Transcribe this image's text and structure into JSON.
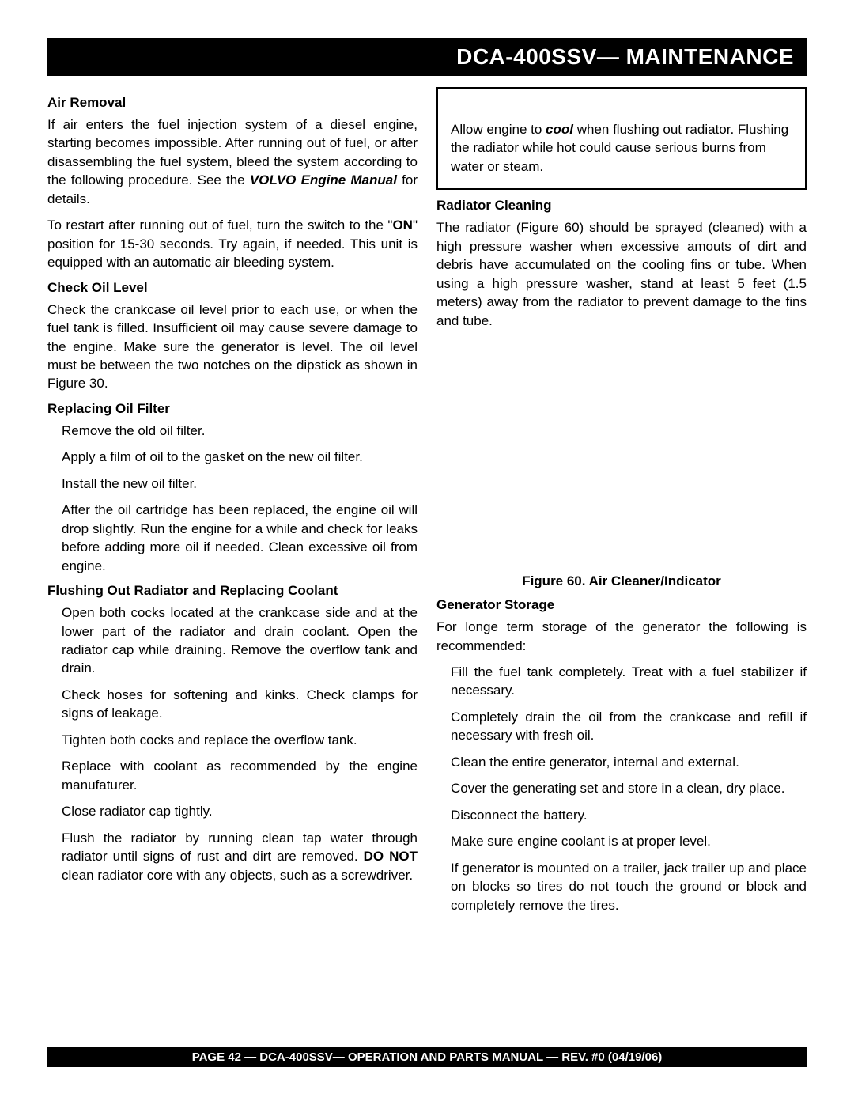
{
  "title_bar": "DCA-400SSV— MAINTENANCE",
  "footer": "PAGE 42 — DCA-400SSV—  OPERATION AND PARTS  MANUAL — REV. #0  (04/19/06)",
  "colors": {
    "bar_bg": "#000000",
    "bar_text": "#ffffff",
    "body_text": "#000000",
    "page_bg": "#ffffff",
    "border": "#000000"
  },
  "typography": {
    "heading_fontsize": 17,
    "body_fontsize": 17,
    "title_fontsize": 28,
    "footer_fontsize": 15
  },
  "left": {
    "air_removal": {
      "heading": "Air Removal",
      "p1_a": "If air enters the fuel injection system of a diesel engine, starting becomes impossible.  After running out of fuel, or after disassembling the fuel system, bleed the system according to the following procedure. See the ",
      "p1_b": "VOLVO Engine Manual",
      "p1_c": " for details.",
      "p2_a": "To restart after running out of fuel, turn the switch to the \"",
      "p2_b": "ON",
      "p2_c": "\" position for 15-30 seconds.  Try again, if needed. This unit is equipped with an automatic air bleeding system."
    },
    "check_oil": {
      "heading": "Check Oil Level",
      "p1": "Check the crankcase oil level prior to each use, or when the fuel tank is filled. Insufficient oil may cause severe damage to the engine. Make sure the generator is level. The oil level must be between the two notches on the dipstick as shown in Figure 30."
    },
    "oil_filter": {
      "heading": "Replacing Oil Filter",
      "items": [
        "Remove the old oil filter.",
        "Apply a film of oil to the gasket on the new oil filter.",
        "Install the new oil filter.",
        "After the oil cartridge has been replaced, the engine oil will drop slightly.  Run the engine for a while and check for leaks before adding more oil if needed. Clean excessive oil from engine."
      ]
    },
    "flushing": {
      "heading": "Flushing Out Radiator and Replacing Coolant",
      "items_plain": [
        "Open both cocks located at the crankcase side and at the lower part of the radiator and drain coolant. Open the radiator cap while draining. Remove the overflow tank and drain.",
        "Check hoses for softening and kinks.  Check clamps for signs of leakage.",
        "Tighten both cocks and replace the overflow tank.",
        "Replace with coolant as recommended by the engine manufaturer.",
        "Close radiator cap tightly."
      ],
      "last_a": "Flush the radiator by running clean tap water through radiator until signs of rust and dirt are removed. ",
      "last_b": "DO NOT",
      "last_c": " clean radiator core with any objects, such as a screwdriver."
    }
  },
  "right": {
    "warning": {
      "a": "Allow engine to ",
      "b": "cool",
      "c": " when flushing out radiator. Flushing the radiator while hot could cause serious burns from water or steam."
    },
    "radiator_cleaning": {
      "heading": "Radiator Cleaning",
      "p1": "The radiator (Figure 60) should be sprayed (cleaned) with a high pressure washer when excessive amouts of dirt and debris have accumulated on the cooling fins or tube. When using a high pressure washer, stand at least 5 feet (1.5 meters) away from the radiator to prevent damage to the fins and tube."
    },
    "figure_caption": "Figure 60. Air Cleaner/Indicator",
    "storage": {
      "heading": "Generator Storage",
      "intro": "For longe term storage of the generator the following is recommended:",
      "items": [
        "Fill  the fuel tank completely. Treat with a fuel stabilizer if necessary.",
        "Completely drain the oil from the crankcase and refill if necessary with fresh oil.",
        "Clean the entire generator, internal and external.",
        "Cover the generating set and store in a clean, dry place.",
        "Disconnect the battery.",
        "Make sure engine coolant is at proper level.",
        "If generator is mounted on a trailer, jack trailer up and place on blocks so tires do not touch the ground or block and completely remove the tires."
      ]
    }
  }
}
